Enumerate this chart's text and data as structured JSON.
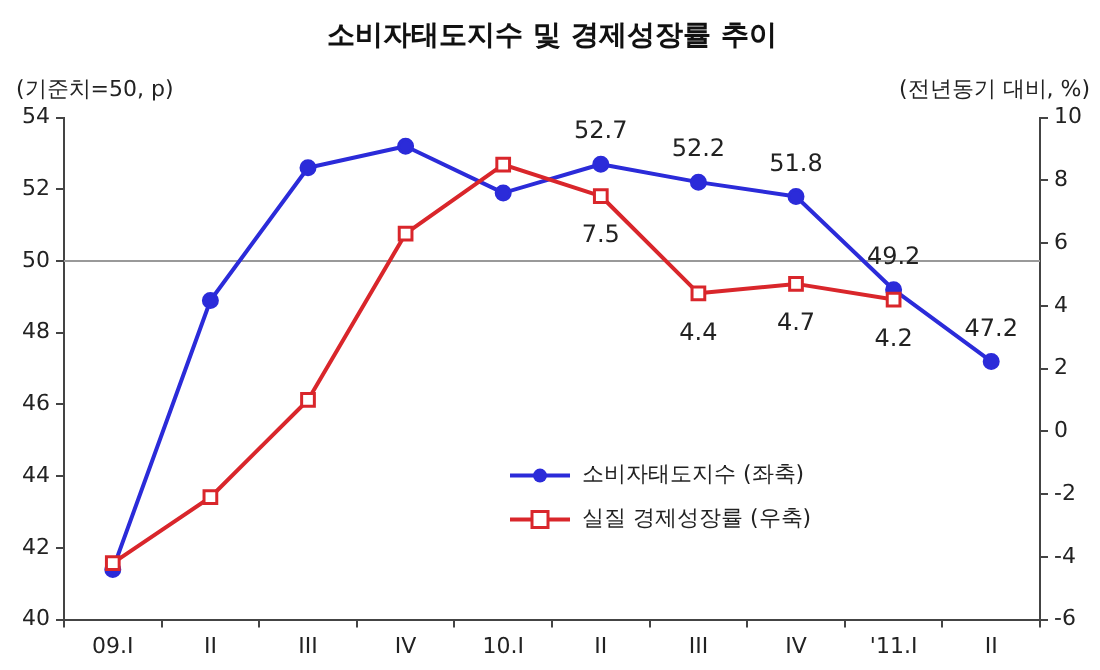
{
  "chart_data": {
    "type": "line",
    "title": "소비자태도지수 및 경제성장률 추이",
    "ylabel": "(기준치=50, p)",
    "y2label": "(전년동기 대비, %)",
    "categories": [
      "09.I",
      "II",
      "III",
      "IV",
      "10.I",
      "II",
      "III",
      "IV",
      "'11.I",
      "II"
    ],
    "series": [
      {
        "name": "소비자태도지수 (좌축)",
        "color": "#2b2bd9",
        "marker": "circle",
        "values": [
          41.4,
          48.9,
          52.6,
          53.2,
          51.9,
          52.7,
          52.2,
          51.8,
          49.2,
          47.2
        ],
        "value_labels": [
          null,
          null,
          null,
          null,
          null,
          "52.7",
          "52.2",
          "51.8",
          "49.2",
          "47.2"
        ]
      },
      {
        "name": "실질 경제성장률 (우축)",
        "color": "#d9262b",
        "marker": "square",
        "axis": "y2",
        "values": [
          -4.2,
          -2.1,
          1.0,
          6.3,
          8.5,
          7.5,
          4.4,
          4.7,
          4.2,
          null
        ],
        "value_labels": [
          null,
          null,
          null,
          null,
          null,
          "7.5",
          "4.4",
          "4.7",
          "4.2",
          null
        ]
      }
    ],
    "ylim": [
      40,
      54
    ],
    "yticks": [
      40,
      42,
      44,
      46,
      48,
      50,
      52,
      54
    ],
    "y2lim": [
      -6,
      10
    ],
    "y2ticks": [
      -6,
      -4,
      -2,
      0,
      2,
      4,
      6,
      8,
      10
    ],
    "ref_lines": [
      {
        "axis": "y",
        "value": 50,
        "color": "#999999"
      }
    ],
    "grid": false,
    "legend": "bottom right",
    "line_style": "solid"
  }
}
